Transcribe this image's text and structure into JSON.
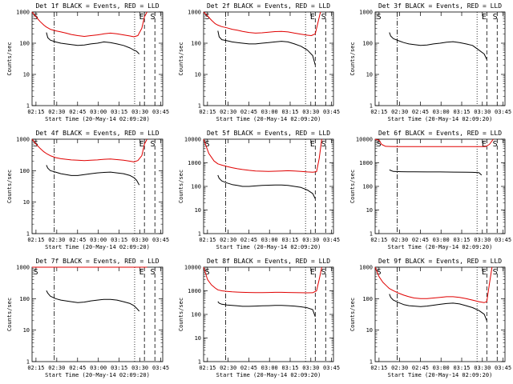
{
  "chart_data": [
    {
      "type": "line",
      "title": "Det 1f BLACK = Events, RED = LLD",
      "xlabel": "Start Time (20-May-14 02:09:20)",
      "ylabel": "Counts/sec",
      "yscale": "log",
      "ylim": [
        1,
        1000
      ],
      "ytick_labels": [
        "1",
        "10",
        "100",
        "1000"
      ],
      "xlim": [
        0,
        100
      ],
      "xtick_labels": [
        "02:15",
        "02:30",
        "02:45",
        "03:00",
        "03:15",
        "03:30",
        "03:45"
      ],
      "grid": false,
      "flags": [
        "S",
        "E",
        "S"
      ],
      "series": [
        {
          "name": "Events",
          "color": "#000000",
          "x": [
            11,
            12,
            14,
            18,
            22,
            26,
            30,
            35,
            40,
            45,
            50,
            55,
            60,
            65,
            70,
            75,
            78,
            80,
            82
          ],
          "y": [
            220,
            150,
            125,
            110,
            100,
            95,
            90,
            85,
            88,
            95,
            100,
            110,
            105,
            95,
            85,
            70,
            60,
            55,
            45
          ]
        },
        {
          "name": "LLD",
          "color": "#e00000",
          "x": [
            0,
            3,
            6,
            9,
            11,
            14,
            18,
            22,
            26,
            30,
            35,
            40,
            45,
            50,
            55,
            60,
            65,
            70,
            75,
            78,
            81,
            84,
            86,
            88
          ],
          "y": [
            1000,
            700,
            500,
            380,
            330,
            280,
            250,
            230,
            210,
            190,
            175,
            165,
            175,
            185,
            200,
            210,
            200,
            185,
            170,
            160,
            175,
            300,
            700,
            1000
          ]
        }
      ]
    },
    {
      "type": "line",
      "title": "Det 2f BLACK = Events, RED = LLD",
      "xlabel": "Start Time (20-May-14 02:09:20)",
      "ylabel": "Counts/sec",
      "yscale": "log",
      "ylim": [
        1,
        1000
      ],
      "ytick_labels": [
        "1",
        "10",
        "100",
        "1000"
      ],
      "xlim": [
        0,
        100
      ],
      "xtick_labels": [
        "02:15",
        "02:30",
        "02:45",
        "03:00",
        "03:15",
        "03:30",
        "03:45"
      ],
      "grid": false,
      "flags": [
        "S",
        "E",
        "S"
      ],
      "series": [
        {
          "name": "Events",
          "color": "#000000",
          "x": [
            11,
            12,
            14,
            18,
            22,
            26,
            30,
            35,
            40,
            45,
            50,
            55,
            60,
            65,
            70,
            75,
            80,
            84,
            86
          ],
          "y": [
            250,
            160,
            130,
            120,
            110,
            105,
            100,
            95,
            95,
            100,
            105,
            110,
            115,
            110,
            95,
            80,
            60,
            40,
            20
          ]
        },
        {
          "name": "LLD",
          "color": "#e00000",
          "x": [
            0,
            3,
            6,
            9,
            11,
            14,
            18,
            22,
            26,
            30,
            35,
            40,
            45,
            50,
            55,
            60,
            65,
            70,
            75,
            80,
            83,
            86,
            88,
            90
          ],
          "y": [
            1000,
            750,
            550,
            420,
            380,
            340,
            310,
            280,
            260,
            240,
            220,
            210,
            215,
            225,
            235,
            240,
            230,
            210,
            195,
            180,
            175,
            200,
            450,
            1000
          ]
        }
      ]
    },
    {
      "type": "line",
      "title": "Det 3f BLACK = Events, RED = LLD",
      "xlabel": "Start Time (20-May-14 02:09:20)",
      "ylabel": "Counts/sec",
      "yscale": "log",
      "ylim": [
        1,
        1000
      ],
      "ytick_labels": [
        "1",
        "10",
        "100",
        "1000"
      ],
      "xlim": [
        0,
        100
      ],
      "xtick_labels": [
        "02:15",
        "02:30",
        "02:45",
        "03:00",
        "03:15",
        "03:30",
        "03:45"
      ],
      "grid": false,
      "flags": [
        "S",
        "E",
        "S"
      ],
      "series": [
        {
          "name": "Events",
          "color": "#000000",
          "x": [
            11,
            12,
            14,
            18,
            22,
            26,
            30,
            35,
            40,
            45,
            50,
            55,
            60,
            65,
            70,
            75,
            80,
            84,
            86
          ],
          "y": [
            220,
            170,
            140,
            120,
            105,
            95,
            90,
            85,
            88,
            95,
            100,
            108,
            112,
            105,
            95,
            85,
            60,
            45,
            30
          ]
        }
      ]
    },
    {
      "type": "line",
      "title": "Det 4f BLACK = Events, RED = LLD",
      "xlabel": "Start Time (20-May-14 02:09:20)",
      "ylabel": "Counts/sec",
      "yscale": "log",
      "ylim": [
        1,
        1000
      ],
      "ytick_labels": [
        "1",
        "10",
        "100",
        "1000"
      ],
      "xlim": [
        0,
        100
      ],
      "xtick_labels": [
        "02:15",
        "02:30",
        "02:45",
        "03:00",
        "03:15",
        "03:30",
        "03:45"
      ],
      "grid": false,
      "flags": [
        "S",
        "E",
        "S"
      ],
      "series": [
        {
          "name": "Events",
          "color": "#000000",
          "x": [
            11,
            12,
            14,
            18,
            22,
            26,
            30,
            35,
            40,
            45,
            50,
            55,
            60,
            65,
            70,
            75,
            78,
            80,
            82
          ],
          "y": [
            150,
            120,
            100,
            90,
            80,
            75,
            70,
            70,
            75,
            80,
            85,
            88,
            90,
            85,
            80,
            70,
            60,
            50,
            35
          ]
        },
        {
          "name": "LLD",
          "color": "#e00000",
          "x": [
            0,
            3,
            6,
            9,
            11,
            14,
            18,
            22,
            26,
            30,
            35,
            40,
            45,
            50,
            55,
            60,
            65,
            70,
            75,
            78,
            81,
            84,
            86,
            88
          ],
          "y": [
            1000,
            700,
            520,
            400,
            350,
            300,
            260,
            240,
            230,
            220,
            215,
            210,
            215,
            220,
            230,
            235,
            225,
            215,
            200,
            190,
            210,
            300,
            700,
            1000
          ]
        }
      ]
    },
    {
      "type": "line",
      "title": "Det 5f BLACK = Events, RED = LLD",
      "xlabel": "Start Time (20-May-14 02:09:20)",
      "ylabel": "Counts/sec",
      "yscale": "log",
      "ylim": [
        1,
        10000
      ],
      "ytick_labels": [
        "1",
        "10",
        "100",
        "1000",
        "10000"
      ],
      "xlim": [
        0,
        100
      ],
      "xtick_labels": [
        "02:15",
        "02:30",
        "02:45",
        "03:00",
        "03:15",
        "03:30",
        "03:45"
      ],
      "grid": false,
      "flags": [
        "S",
        "E",
        "S"
      ],
      "series": [
        {
          "name": "Events",
          "color": "#000000",
          "x": [
            11,
            12,
            14,
            18,
            22,
            26,
            30,
            35,
            40,
            45,
            50,
            55,
            60,
            65,
            70,
            75,
            80,
            84,
            86
          ],
          "y": [
            300,
            220,
            170,
            140,
            120,
            110,
            100,
            100,
            105,
            110,
            112,
            115,
            115,
            110,
            100,
            90,
            70,
            50,
            30
          ]
        },
        {
          "name": "LLD",
          "color": "#e00000",
          "x": [
            0,
            4,
            8,
            11,
            14,
            18,
            22,
            26,
            30,
            35,
            40,
            45,
            50,
            55,
            60,
            65,
            70,
            75,
            80,
            84,
            87,
            89,
            91
          ],
          "y": [
            10000,
            2500,
            1200,
            900,
            800,
            700,
            620,
            560,
            520,
            480,
            450,
            440,
            430,
            440,
            450,
            460,
            450,
            430,
            410,
            400,
            420,
            1500,
            10000
          ]
        }
      ]
    },
    {
      "type": "line",
      "title": "Det 6f BLACK = Events, RED = LLD",
      "xlabel": "Start Time (20-May-14 02:09:20)",
      "ylabel": "Counts/sec",
      "yscale": "log",
      "ylim": [
        1,
        10000
      ],
      "ytick_labels": [
        "1",
        "10",
        "100",
        "1000",
        "10000"
      ],
      "xlim": [
        0,
        100
      ],
      "xtick_labels": [
        "02:15",
        "02:30",
        "02:45",
        "03:00",
        "03:15",
        "03:30",
        "03:45"
      ],
      "grid": false,
      "flags": [
        "S",
        "E",
        "S"
      ],
      "series": [
        {
          "name": "Events",
          "color": "#000000",
          "x": [
            11,
            14,
            20,
            30,
            40,
            50,
            60,
            70,
            75,
            78,
            80,
            82
          ],
          "y": [
            500,
            430,
            420,
            415,
            410,
            410,
            405,
            400,
            395,
            390,
            380,
            300
          ]
        },
        {
          "name": "LLD",
          "color": "#e00000",
          "x": [
            0,
            3,
            5,
            8,
            12,
            20,
            30,
            40,
            50,
            60,
            70,
            80,
            85,
            88,
            91
          ],
          "y": [
            10000,
            9000,
            6000,
            5000,
            4900,
            4850,
            4850,
            4850,
            4850,
            4850,
            4850,
            4850,
            4850,
            6000,
            10000
          ]
        }
      ]
    },
    {
      "type": "line",
      "title": "Det 7f BLACK = Events, RED = LLD",
      "xlabel": "Start Time (20-May-14 02:09:20)",
      "ylabel": "Counts/sec",
      "yscale": "log",
      "ylim": [
        1,
        1000
      ],
      "ytick_labels": [
        "1",
        "10",
        "100",
        "1000"
      ],
      "xlim": [
        0,
        100
      ],
      "xtick_labels": [
        "02:15",
        "02:30",
        "02:45",
        "03:00",
        "03:15",
        "03:30",
        "03:45"
      ],
      "grid": false,
      "flags": [
        "S",
        "E",
        "S"
      ],
      "series": [
        {
          "name": "Events",
          "color": "#000000",
          "x": [
            11,
            12,
            14,
            18,
            22,
            26,
            30,
            35,
            40,
            45,
            50,
            55,
            60,
            65,
            70,
            75,
            78,
            80,
            82
          ],
          "y": [
            180,
            150,
            120,
            100,
            90,
            85,
            80,
            75,
            78,
            85,
            90,
            95,
            95,
            90,
            80,
            70,
            60,
            50,
            40
          ]
        },
        {
          "name": "LLD",
          "color": "#e00000",
          "x": [
            0,
            10,
            20,
            30,
            40,
            50,
            60,
            70,
            80,
            88
          ],
          "y": [
            1000,
            1000,
            1000,
            1000,
            1000,
            1000,
            1000,
            1000,
            1000,
            1000
          ]
        }
      ]
    },
    {
      "type": "line",
      "title": "Det 8f BLACK = Events, RED = LLD",
      "xlabel": "Start Time (20-May-14 02:09:20)",
      "ylabel": "Counts/sec",
      "yscale": "log",
      "ylim": [
        1,
        10000
      ],
      "ytick_labels": [
        "1",
        "10",
        "100",
        "1000",
        "10000"
      ],
      "xlim": [
        0,
        100
      ],
      "xtick_labels": [
        "02:15",
        "02:30",
        "02:45",
        "03:00",
        "03:15",
        "03:30",
        "03:45"
      ],
      "grid": false,
      "flags": [
        "S",
        "E",
        "S"
      ],
      "series": [
        {
          "name": "Events",
          "color": "#000000",
          "x": [
            11,
            12,
            14,
            18,
            22,
            26,
            30,
            35,
            40,
            45,
            50,
            55,
            60,
            65,
            70,
            75,
            80,
            84,
            86
          ],
          "y": [
            350,
            300,
            270,
            250,
            240,
            230,
            220,
            220,
            225,
            230,
            235,
            240,
            240,
            235,
            225,
            210,
            190,
            160,
            80
          ]
        },
        {
          "name": "LLD",
          "color": "#e00000",
          "x": [
            0,
            3,
            6,
            9,
            11,
            14,
            18,
            22,
            26,
            30,
            35,
            40,
            45,
            50,
            55,
            60,
            65,
            70,
            75,
            80,
            84,
            87,
            89,
            91
          ],
          "y": [
            10000,
            3000,
            1800,
            1300,
            1100,
            1000,
            950,
            900,
            880,
            860,
            850,
            840,
            845,
            850,
            860,
            860,
            850,
            840,
            830,
            820,
            830,
            1000,
            3000,
            10000
          ]
        }
      ]
    },
    {
      "type": "line",
      "title": "Det 9f BLACK = Events, RED = LLD",
      "xlabel": "Start Time (20-May-14 02:09:20)",
      "ylabel": "Counts/sec",
      "yscale": "log",
      "ylim": [
        1,
        1000
      ],
      "ytick_labels": [
        "1",
        "10",
        "100",
        "1000"
      ],
      "xlim": [
        0,
        100
      ],
      "xtick_labels": [
        "02:15",
        "02:30",
        "02:45",
        "03:00",
        "03:15",
        "03:30",
        "03:45"
      ],
      "grid": false,
      "flags": [
        "S",
        "E",
        "S"
      ],
      "series": [
        {
          "name": "Events",
          "color": "#000000",
          "x": [
            11,
            12,
            14,
            18,
            22,
            26,
            30,
            35,
            40,
            45,
            50,
            55,
            60,
            65,
            70,
            75,
            80,
            84,
            86
          ],
          "y": [
            140,
            110,
            90,
            75,
            65,
            60,
            58,
            56,
            58,
            62,
            66,
            70,
            72,
            68,
            60,
            52,
            42,
            32,
            20
          ]
        },
        {
          "name": "LLD",
          "color": "#e00000",
          "x": [
            0,
            3,
            6,
            9,
            11,
            14,
            18,
            22,
            26,
            30,
            35,
            40,
            45,
            50,
            55,
            60,
            65,
            70,
            75,
            80,
            84,
            86,
            88,
            90
          ],
          "y": [
            1000,
            500,
            330,
            250,
            210,
            180,
            150,
            130,
            115,
            105,
            100,
            100,
            105,
            110,
            115,
            115,
            110,
            100,
            90,
            80,
            75,
            80,
            300,
            1000
          ]
        }
      ]
    }
  ]
}
